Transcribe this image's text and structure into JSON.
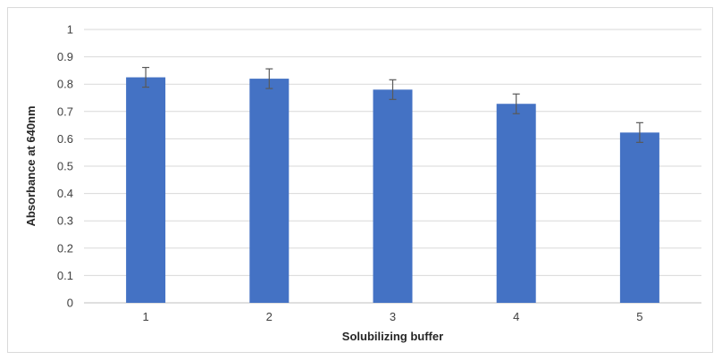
{
  "chart_data": {
    "type": "bar",
    "title": "",
    "xlabel": "Solubilizing buffer",
    "ylabel": "Absorbance at 640nm",
    "categories": [
      "1",
      "2",
      "3",
      "4",
      "5"
    ],
    "values": [
      0.825,
      0.82,
      0.78,
      0.728,
      0.623
    ],
    "error": [
      0.036,
      0.036,
      0.036,
      0.036,
      0.036
    ],
    "ylim": [
      0,
      1
    ],
    "yticks": [
      "0",
      "0.1",
      "0.2",
      "0.3",
      "0.4",
      "0.5",
      "0.6",
      "0.7",
      "0.8",
      "0.9",
      "1"
    ],
    "grid": true,
    "legend": "none",
    "colors": {
      "bar": "#4472C4",
      "grid": "#d9d9d9",
      "error_bar": "#595959",
      "axis": "#bfbfbf"
    }
  }
}
